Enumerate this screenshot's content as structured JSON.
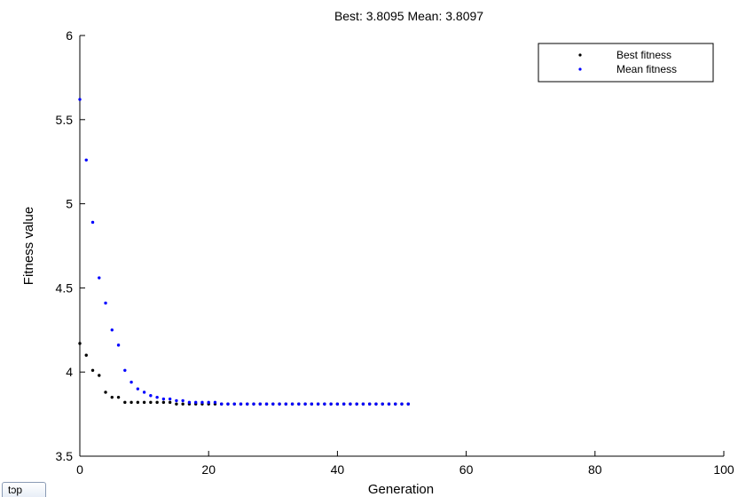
{
  "chart_data": {
    "type": "scatter",
    "title": "Best: 3.8095 Mean: 3.8097",
    "xlabel": "Generation",
    "ylabel": "Fitness value",
    "xlim": [
      0,
      100
    ],
    "ylim": [
      3.5,
      6
    ],
    "xticks": [
      "0",
      "20",
      "40",
      "60",
      "80",
      "100"
    ],
    "yticks": [
      "3.5",
      "4",
      "4.5",
      "5",
      "5.5",
      "6"
    ],
    "grid": false,
    "legend_position": "top-right",
    "series": [
      {
        "name": "Best fitness",
        "color": "#000000",
        "x": [
          0,
          1,
          2,
          3,
          4,
          5,
          6,
          7,
          8,
          9,
          10,
          11,
          12,
          13,
          14,
          15,
          16,
          17,
          18,
          19,
          20,
          21,
          22,
          23,
          24,
          25,
          26,
          27,
          28,
          29,
          30,
          31,
          32,
          33,
          34,
          35,
          36,
          37,
          38,
          39,
          40,
          41,
          42,
          43,
          44,
          45,
          46,
          47,
          48,
          49,
          50,
          51
        ],
        "y": [
          4.17,
          4.1,
          4.01,
          3.98,
          3.88,
          3.85,
          3.85,
          3.82,
          3.82,
          3.82,
          3.82,
          3.82,
          3.82,
          3.82,
          3.82,
          3.81,
          3.81,
          3.81,
          3.81,
          3.81,
          3.81,
          3.81,
          3.81,
          3.81,
          3.81,
          3.81,
          3.81,
          3.81,
          3.81,
          3.81,
          3.81,
          3.81,
          3.81,
          3.81,
          3.81,
          3.81,
          3.81,
          3.81,
          3.81,
          3.81,
          3.81,
          3.81,
          3.81,
          3.81,
          3.81,
          3.81,
          3.81,
          3.81,
          3.81,
          3.81,
          3.81,
          3.81
        ]
      },
      {
        "name": "Mean fitness",
        "color": "#0000ff",
        "x": [
          0,
          1,
          2,
          3,
          4,
          5,
          6,
          7,
          8,
          9,
          10,
          11,
          12,
          13,
          14,
          15,
          16,
          17,
          18,
          19,
          20,
          21,
          22,
          23,
          24,
          25,
          26,
          27,
          28,
          29,
          30,
          31,
          32,
          33,
          34,
          35,
          36,
          37,
          38,
          39,
          40,
          41,
          42,
          43,
          44,
          45,
          46,
          47,
          48,
          49,
          50,
          51
        ],
        "y": [
          5.62,
          5.26,
          4.89,
          4.56,
          4.41,
          4.25,
          4.16,
          4.01,
          3.94,
          3.9,
          3.88,
          3.86,
          3.85,
          3.84,
          3.84,
          3.83,
          3.83,
          3.82,
          3.82,
          3.82,
          3.82,
          3.82,
          3.81,
          3.81,
          3.81,
          3.81,
          3.81,
          3.81,
          3.81,
          3.81,
          3.81,
          3.81,
          3.81,
          3.81,
          3.81,
          3.81,
          3.81,
          3.81,
          3.81,
          3.81,
          3.81,
          3.81,
          3.81,
          3.81,
          3.81,
          3.81,
          3.81,
          3.81,
          3.81,
          3.81,
          3.81,
          3.81
        ]
      }
    ]
  },
  "controls": {
    "stop_label": "tɔp"
  }
}
